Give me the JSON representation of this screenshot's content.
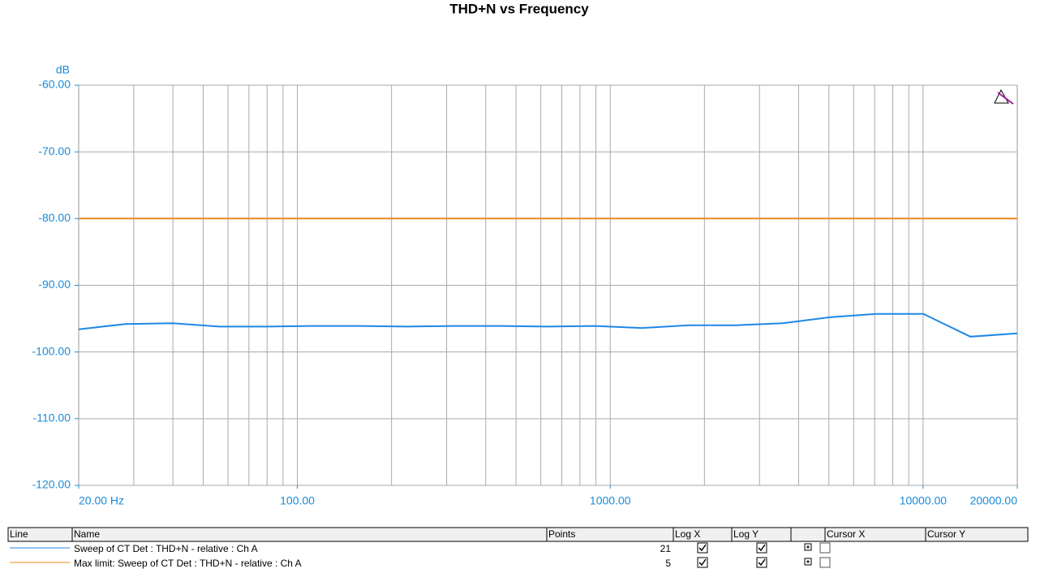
{
  "chart_data": {
    "type": "line",
    "title": "THD+N vs Frequency",
    "y_label": "dB",
    "log_x": true,
    "grid": true,
    "xlim": [
      20,
      20000
    ],
    "ylim": [
      -120,
      -60
    ],
    "xticks": [
      {
        "value": 20,
        "label": "20.00 Hz"
      },
      {
        "value": 100,
        "label": "100.00"
      },
      {
        "value": 1000,
        "label": "1000.00"
      },
      {
        "value": 10000,
        "label": "10000.00"
      },
      {
        "value": 20000,
        "label": "20000.00"
      }
    ],
    "yticks": [
      {
        "value": -60,
        "label": "-60.00"
      },
      {
        "value": -70,
        "label": "-70.00"
      },
      {
        "value": -80,
        "label": "-80.00"
      },
      {
        "value": -90,
        "label": "-90.00"
      },
      {
        "value": -100,
        "label": "-100.00"
      },
      {
        "value": -110,
        "label": "-110.00"
      },
      {
        "value": -120,
        "label": "-120.00"
      }
    ],
    "series": [
      {
        "name": "Sweep of CT Det : THD+N - relative : Ch A",
        "color": "#1e88e5",
        "x": [
          20,
          28.2,
          39.9,
          56.4,
          79.6,
          112,
          159,
          224,
          317,
          448,
          632,
          893,
          1262,
          1783,
          2518,
          3557,
          5024,
          7096,
          10024,
          14159,
          20000
        ],
        "values": [
          -96.6,
          -95.8,
          -95.7,
          -96.2,
          -96.2,
          -96.1,
          -96.1,
          -96.2,
          -96.1,
          -96.1,
          -96.2,
          -96.1,
          -96.4,
          -96.0,
          -96.0,
          -95.7,
          -94.8,
          -94.3,
          -94.3,
          -97.7,
          -97.2
        ]
      },
      {
        "name": "Max limit: Sweep of CT Det : THD+N - relative : Ch A",
        "color": "#f0871e",
        "x": [
          20,
          100,
          1000,
          10000,
          20000
        ],
        "values": [
          -80,
          -80,
          -80,
          -80,
          -80
        ]
      }
    ]
  },
  "legend_table": {
    "headers": [
      "Line",
      "Name",
      "Points",
      "Log X",
      "Log Y",
      "Cursor X",
      "Cursor Y"
    ],
    "rows": [
      {
        "points": 21,
        "log_x": true,
        "log_y": true
      },
      {
        "points": 5,
        "log_x": true,
        "log_y": true
      }
    ]
  }
}
